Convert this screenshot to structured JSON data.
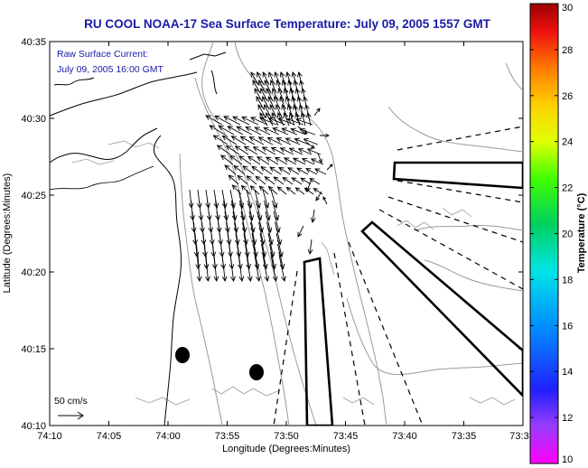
{
  "title": "RU COOL  NOAA-17  Sea Surface Temperature:  July 09, 2005 1557 GMT",
  "annotation": {
    "line1": "Raw Surface Current:",
    "line2": "July 09, 2005 16:00 GMT"
  },
  "axes": {
    "xlabel": "Longitude (Degrees:Minutes)",
    "ylabel": "Latitude (Degrees:Minutes)",
    "x_ticks": [
      "74:10",
      "74:05",
      "74:00",
      "73:55",
      "73:50",
      "73:45",
      "73:40",
      "73:35",
      "73:3"
    ],
    "y_ticks": [
      "40:35",
      "40:30",
      "40:25",
      "40:20",
      "40:15",
      "40:10"
    ]
  },
  "scale_label": "50 cm/s",
  "colorbar": {
    "label": "Temperature (°C)",
    "ticks": [
      "30",
      "28",
      "26",
      "24",
      "22",
      "20",
      "18",
      "16",
      "14",
      "12",
      "10"
    ],
    "min": 10,
    "max": 30
  },
  "colors": {
    "title": "#1a1aa6",
    "vectors": "#000000",
    "coast": "#000000",
    "bathymetry": "#9a9a9a"
  }
}
